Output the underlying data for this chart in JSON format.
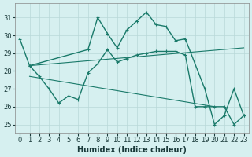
{
  "xlabel": "Humidex (Indice chaleur)",
  "background_color": "#d6f0f0",
  "grid_color": "#b8d8d8",
  "line_color": "#1a7a6a",
  "xlim": [
    -0.5,
    23.5
  ],
  "ylim": [
    24.5,
    31.8
  ],
  "yticks": [
    25,
    26,
    27,
    28,
    29,
    30,
    31
  ],
  "xticks": [
    0,
    1,
    2,
    3,
    4,
    5,
    6,
    7,
    8,
    9,
    10,
    11,
    12,
    13,
    14,
    15,
    16,
    17,
    18,
    19,
    20,
    21,
    22,
    23
  ],
  "series": [
    {
      "x": [
        0,
        1,
        7,
        8,
        9,
        10,
        11,
        12,
        13,
        14,
        15,
        16,
        17,
        19,
        20,
        21,
        22,
        23
      ],
      "y": [
        29.8,
        28.3,
        29.2,
        31.0,
        30.1,
        29.3,
        30.3,
        30.8,
        31.3,
        30.6,
        30.5,
        29.7,
        29.8,
        27.0,
        25.0,
        25.5,
        27.0,
        25.5
      ],
      "marker": true,
      "lw": 1.0
    },
    {
      "x": [
        1,
        2,
        3,
        4,
        5,
        6,
        7,
        8,
        9,
        10,
        11,
        12,
        13,
        14,
        15,
        16,
        17,
        18,
        19,
        20,
        21,
        22,
        23
      ],
      "y": [
        28.3,
        27.7,
        27.0,
        26.2,
        26.6,
        26.4,
        27.9,
        28.4,
        29.2,
        28.5,
        28.7,
        28.9,
        29.0,
        29.1,
        29.1,
        29.1,
        28.9,
        26.0,
        26.0,
        26.0,
        26.0,
        25.0,
        25.5
      ],
      "marker": true,
      "lw": 1.0
    },
    {
      "x": [
        1,
        23
      ],
      "y": [
        28.3,
        29.3
      ],
      "marker": false,
      "lw": 0.8
    },
    {
      "x": [
        1,
        20
      ],
      "y": [
        27.7,
        26.0
      ],
      "marker": false,
      "lw": 0.8
    }
  ]
}
